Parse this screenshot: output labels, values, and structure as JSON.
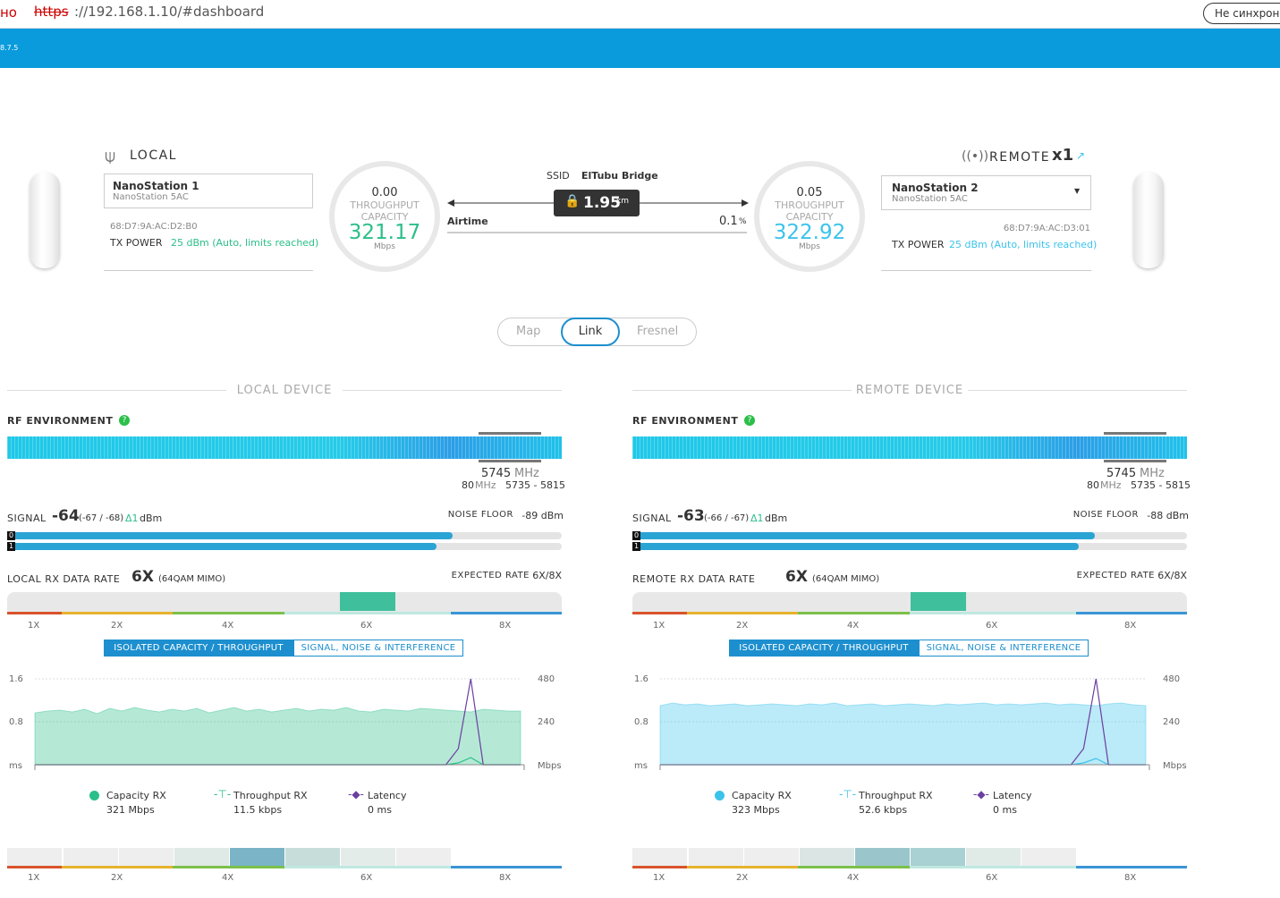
{
  "browser": {
    "left_text": "но",
    "url_scheme": "https",
    "url_rest": "://192.168.1.10/#dashboard",
    "sync_button": "Не синхрони"
  },
  "header": {
    "version": "8.7.5"
  },
  "local": {
    "title": "LOCAL",
    "device_name": "NanoStation 1",
    "model": "NanoStation 5AC",
    "mac": "68:D7:9A:AC:D2:B0",
    "tx_label": "TX POWER",
    "tx_value": "25 dBm (Auto, limits reached)",
    "throughput": "0.00",
    "throughput_label": "THROUGHPUT",
    "capacity_label": "CAPACITY",
    "capacity": "321.17",
    "unit": "Mbps"
  },
  "remote": {
    "title": "REMOTE",
    "count": "x1",
    "device_name": "NanoStation 2",
    "model": "NanoStation 5AC",
    "mac": "68:D7:9A:AC:D3:01",
    "tx_label": "TX POWER",
    "tx_value": "25 dBm (Auto, limits reached)",
    "throughput": "0.05",
    "throughput_label": "THROUGHPUT",
    "capacity_label": "CAPACITY",
    "capacity": "322.92",
    "unit": "Mbps"
  },
  "link": {
    "ssid_label": "SSID",
    "ssid": "ElTubu Bridge",
    "distance": "1.95",
    "distance_unit": "km",
    "airtime_label": "Airtime",
    "airtime": "0.1",
    "airtime_unit": "%"
  },
  "tabs": [
    "Map",
    "Link",
    "Fresnel"
  ],
  "panels": [
    {
      "heading": "LOCAL DEVICE",
      "rf_label": "RF ENVIRONMENT",
      "freq": "5745",
      "freq_unit": "MHz",
      "width": "80",
      "width_unit": "MHz",
      "range": "5735 - 5815",
      "signal_label": "SIGNAL",
      "signal": "-64",
      "signal_chains": "(-67 / -68)",
      "delta": "Δ1",
      "signal_unit": "dBm",
      "chain_labels": [
        "0",
        "1"
      ],
      "noise_label": "NOISE FLOOR",
      "noise": "-89 dBm",
      "rate_label": "LOCAL RX DATA RATE",
      "rate": "6X",
      "rate_mod": "(64QAM MIMO)",
      "expected_label": "EXPECTED RATE",
      "expected": "6X/8X",
      "rate_ticks": [
        "1X",
        "2X",
        "4X",
        "6X",
        "8X"
      ],
      "chart_tabs": [
        "ISOLATED CAPACITY / THROUGHPUT",
        "SIGNAL, NOISE & INTERFERENCE"
      ],
      "chart": {
        "type": "area",
        "ylabel": "ms",
        "y2label": "Mbps",
        "ylim": [
          0,
          1.6
        ],
        "yticks": [
          0.8,
          1.6
        ],
        "y2lim": [
          0,
          480
        ],
        "y2ticks": [
          240,
          480
        ],
        "series": [
          {
            "name": "Capacity RX",
            "color": "#2bbf8a",
            "axis": "y2",
            "values": [
              290,
              300,
              305,
              295,
              310,
              285,
              315,
              300,
              320,
              305,
              295,
              310,
              300,
              315,
              290,
              305,
              320,
              300,
              310,
              295,
              305,
              315,
              300,
              310,
              305,
              320,
              300,
              295,
              310,
              305,
              300,
              315,
              310,
              305,
              300,
              295,
              310,
              305,
              300,
              300
            ]
          },
          {
            "name": "Throughput RX",
            "color": "#2bbf8a",
            "axis": "y2",
            "values": [
              0,
              0,
              0,
              0,
              0,
              0,
              0,
              0,
              0,
              0,
              0,
              0,
              0,
              0,
              0,
              0,
              0,
              0,
              0,
              0,
              0,
              0,
              0,
              0,
              0,
              0,
              0,
              0,
              0,
              0,
              0,
              0,
              0,
              0,
              10,
              40,
              0,
              0,
              0,
              0
            ]
          },
          {
            "name": "Latency",
            "color": "#6b3fa0",
            "values": [
              0,
              0,
              0,
              0,
              0,
              0,
              0,
              0,
              0,
              0,
              0,
              0,
              0,
              0,
              0,
              0,
              0,
              0,
              0,
              0,
              0,
              0,
              0,
              0,
              0,
              0,
              0,
              0,
              0,
              0,
              0,
              0,
              0,
              0,
              0.3,
              1.6,
              0,
              0,
              0,
              0
            ]
          }
        ],
        "legend_values": [
          "321 Mbps",
          "11.5 kbps",
          "0 ms"
        ]
      }
    },
    {
      "heading": "REMOTE DEVICE",
      "rf_label": "RF ENVIRONMENT",
      "freq": "5745",
      "freq_unit": "MHz",
      "width": "80",
      "width_unit": "MHz",
      "range": "5735 - 5815",
      "signal_label": "SIGNAL",
      "signal": "-63",
      "signal_chains": "(-66 / -67)",
      "delta": "Δ1",
      "signal_unit": "dBm",
      "chain_labels": [
        "0",
        "1"
      ],
      "noise_label": "NOISE FLOOR",
      "noise": "-88 dBm",
      "rate_label": "REMOTE RX DATA RATE",
      "rate": "6X",
      "rate_mod": "(64QAM MIMO)",
      "expected_label": "EXPECTED RATE",
      "expected": "6X/8X",
      "rate_ticks": [
        "1X",
        "2X",
        "4X",
        "6X",
        "8X"
      ],
      "chart_tabs": [
        "ISOLATED CAPACITY / THROUGHPUT",
        "SIGNAL, NOISE & INTERFERENCE"
      ],
      "chart": {
        "type": "area",
        "ylabel": "ms",
        "y2label": "Mbps",
        "ylim": [
          0,
          1.6
        ],
        "yticks": [
          0.8,
          1.6
        ],
        "y2lim": [
          0,
          480
        ],
        "y2ticks": [
          240,
          480
        ],
        "series": [
          {
            "name": "Capacity RX",
            "color": "#3bc3ec",
            "axis": "y2",
            "values": [
              330,
              345,
              335,
              340,
              330,
              335,
              340,
              330,
              335,
              340,
              335,
              330,
              340,
              335,
              345,
              330,
              335,
              340,
              330,
              335,
              340,
              335,
              330,
              340,
              335,
              340,
              345,
              335,
              340,
              335,
              340,
              345,
              335,
              340,
              335,
              330,
              340,
              345,
              335,
              330
            ]
          },
          {
            "name": "Throughput RX",
            "color": "#3bc3ec",
            "axis": "y2",
            "values": [
              0,
              0,
              0,
              0,
              0,
              0,
              0,
              0,
              0,
              0,
              0,
              0,
              0,
              0,
              0,
              0,
              0,
              0,
              0,
              0,
              0,
              0,
              0,
              0,
              0,
              0,
              0,
              0,
              0,
              0,
              0,
              0,
              0,
              0,
              10,
              35,
              0,
              0,
              0,
              0
            ]
          },
          {
            "name": "Latency",
            "color": "#6b3fa0",
            "values": [
              0,
              0,
              0,
              0,
              0,
              0,
              0,
              0,
              0,
              0,
              0,
              0,
              0,
              0,
              0,
              0,
              0,
              0,
              0,
              0,
              0,
              0,
              0,
              0,
              0,
              0,
              0,
              0,
              0,
              0,
              0,
              0,
              0,
              0,
              0.3,
              1.6,
              0,
              0,
              0,
              0
            ]
          }
        ],
        "legend_values": [
          "323 Mbps",
          "52.6 kbps",
          "0 ms"
        ]
      }
    }
  ]
}
